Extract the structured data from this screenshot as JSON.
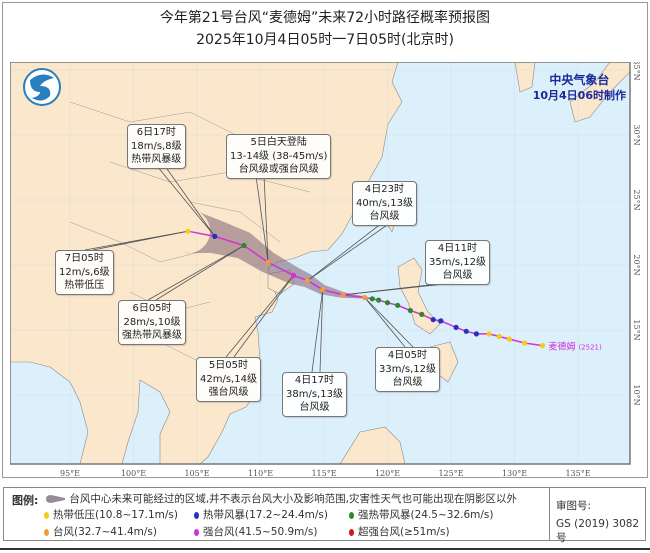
{
  "title": "今年第21号台风“麦德姆”未来72小时路径概率预报图",
  "subtitle": "2025年10月4日05时一7日05时(北京时)",
  "agency": {
    "name": "中央气象台",
    "issued": "10月4日06时制作"
  },
  "map": {
    "colors": {
      "land": "#fbe8cc",
      "sea": "#dcf0fb",
      "border": "#9a9a9a",
      "track": "#d42fd8",
      "cone": "#7f5e72"
    },
    "lon_ticks": [
      "95°E",
      "100°E",
      "105°E",
      "110°E",
      "115°E",
      "120°E",
      "125°E",
      "130°E",
      "135°E"
    ],
    "lat_ticks": [
      "35°N",
      "30°N",
      "25°N",
      "20°N",
      "15°N",
      "10°N"
    ],
    "typhoon_label": "麦德姆",
    "typhoon_id": "(2521)",
    "past_track": [
      [
        132.2,
        13.8,
        "TD"
      ],
      [
        130.8,
        14.0,
        "TD"
      ],
      [
        129.6,
        14.3,
        "TD"
      ],
      [
        128.8,
        14.5,
        "TD"
      ],
      [
        128.0,
        14.7,
        "TD"
      ],
      [
        127.0,
        14.7,
        "TS"
      ],
      [
        126.2,
        14.9,
        "TS"
      ],
      [
        125.4,
        15.2,
        "TS"
      ],
      [
        124.2,
        15.7,
        "TS"
      ],
      [
        123.6,
        15.8,
        "TS"
      ],
      [
        122.7,
        16.2,
        "STS"
      ],
      [
        121.8,
        16.5,
        "STS"
      ],
      [
        120.8,
        16.9,
        "STS"
      ],
      [
        120.0,
        17.1,
        "STS"
      ],
      [
        119.3,
        17.3,
        "STS"
      ],
      [
        118.8,
        17.4,
        "STS"
      ],
      [
        118.2,
        17.5,
        "TY"
      ]
    ],
    "forecast_track": [
      [
        118.2,
        17.5,
        "TY"
      ],
      [
        116.5,
        17.7,
        "TY"
      ],
      [
        114.9,
        18.1,
        "TY"
      ],
      [
        113.7,
        18.8,
        "TY"
      ],
      [
        112.6,
        19.2,
        "STY"
      ],
      [
        110.6,
        20.2,
        "TY"
      ],
      [
        108.7,
        21.5,
        "STS"
      ],
      [
        106.4,
        22.2,
        "TS"
      ],
      [
        104.3,
        22.6,
        "TD"
      ]
    ]
  },
  "labels": [
    {
      "lines": [
        "4日05时",
        "33m/s,12级",
        "台风级"
      ]
    },
    {
      "lines": [
        "4日11时",
        "35m/s,12级",
        "台风级"
      ]
    },
    {
      "lines": [
        "4日17时",
        "38m/s,13级",
        "台风级"
      ]
    },
    {
      "lines": [
        "4日23时",
        "40m/s,13级",
        "台风级"
      ]
    },
    {
      "lines": [
        "5日05时",
        "42m/s,14级",
        "强台风级"
      ]
    },
    {
      "lines": [
        "5日白天登陆",
        "13-14级 (38-45m/s)",
        "台风级或强台风级"
      ]
    },
    {
      "lines": [
        "6日05时",
        "28m/s,10级",
        "强热带风暴级"
      ]
    },
    {
      "lines": [
        "6日17时",
        "18m/s,8级",
        "热带风暴级"
      ]
    },
    {
      "lines": [
        "7日05时",
        "12m/s,6级",
        "热带低压"
      ]
    }
  ],
  "legend": {
    "label": "图例:",
    "cone": "台风中心未来可能经过的区域,并不表示台风大小及影响范围,灾害性天气也可能出现在阴影区以外",
    "items": [
      {
        "key": "TD",
        "text": "热带低压(10.8~17.1m/s)",
        "color": "#f2cc1a"
      },
      {
        "key": "TS",
        "text": "热带风暴(17.2~24.4m/s)",
        "color": "#2233c0"
      },
      {
        "key": "STS",
        "text": "强热带风暴(24.5~32.6m/s)",
        "color": "#2a8a2a"
      },
      {
        "key": "TY",
        "text": "台风(32.7~41.4m/s)",
        "color": "#f59a3c"
      },
      {
        "key": "STY",
        "text": "强台风(41.5~50.9m/s)",
        "color": "#d42fd8"
      },
      {
        "key": "SuperTY",
        "text": "超强台风(≥51m/s)",
        "color": "#d01818"
      }
    ],
    "review_label": "审图号:",
    "review_no": "GS (2019) 3082号"
  }
}
